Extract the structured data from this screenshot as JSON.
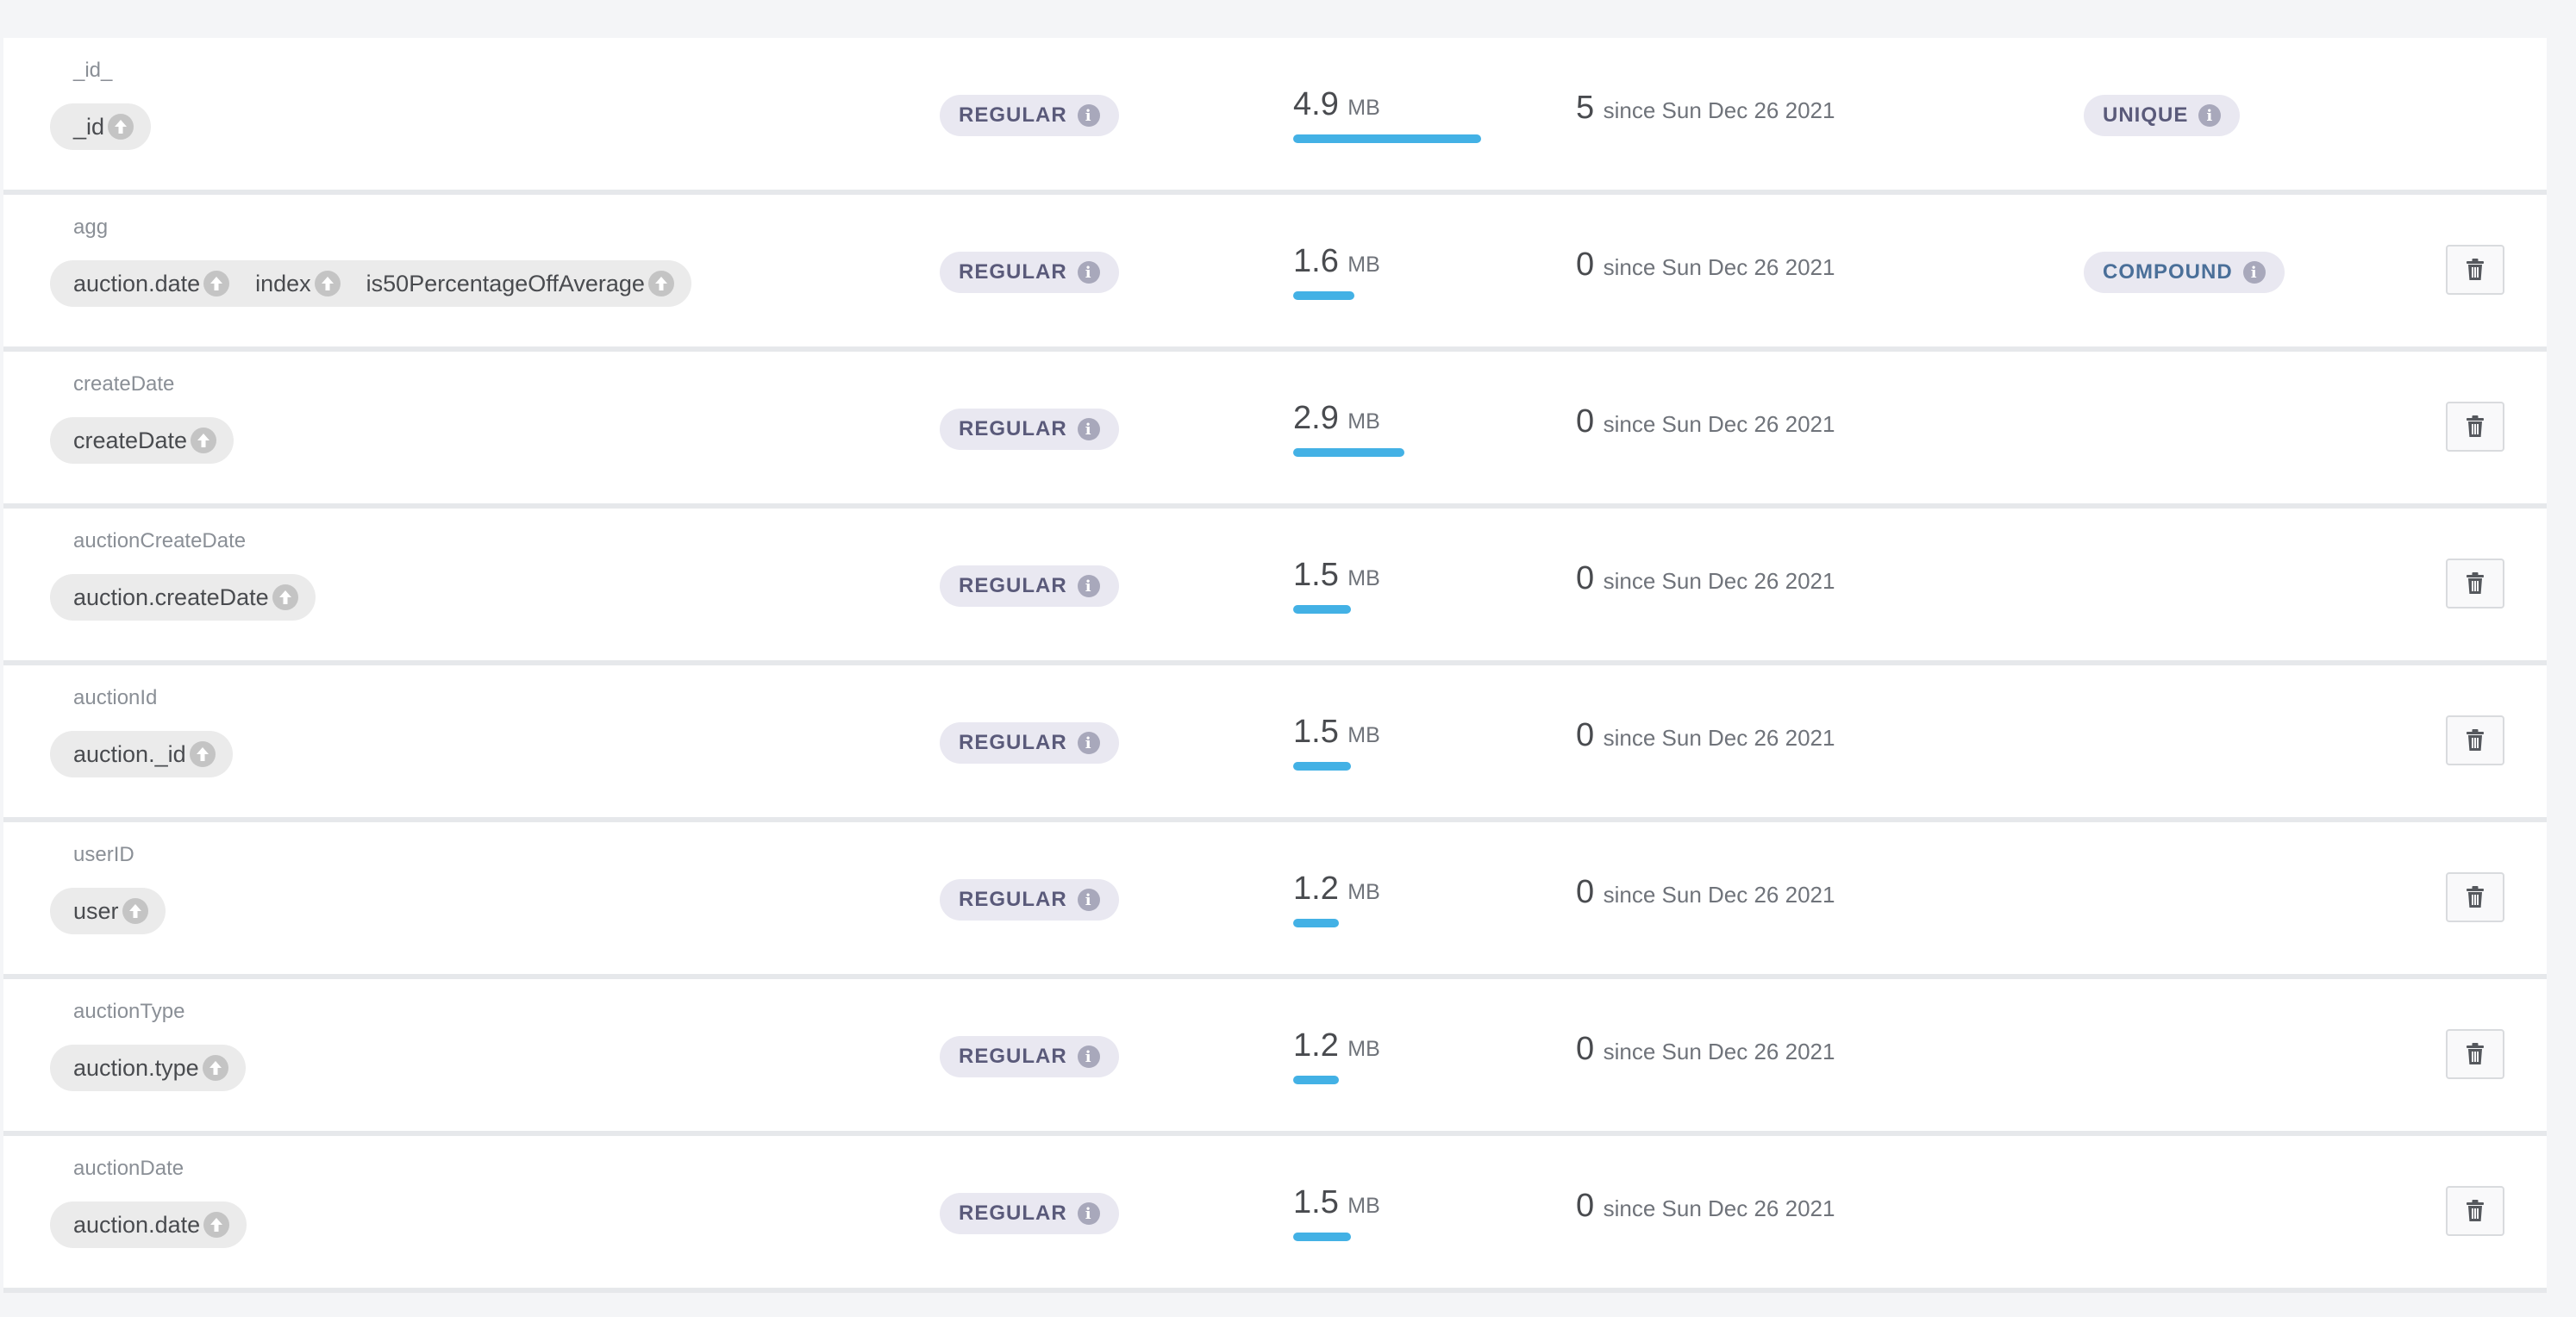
{
  "colors": {
    "page_bg": "#f4f5f7",
    "row_bg": "#ffffff",
    "size_bar": "#43b1e5",
    "badge_bg": "#e9e8f1",
    "compound_text": "#4a6f99"
  },
  "icons": {
    "direction": "arrow-up-circle-icon",
    "info": "info-icon",
    "delete": "trash-icon"
  },
  "max_size_mb": 4.9,
  "indexes": [
    {
      "name": "_id_",
      "fields": [
        {
          "name": "_id"
        }
      ],
      "type": "REGULAR",
      "size_value": "4.9",
      "size_unit": "MB",
      "size_mb": 4.9,
      "usage_count": "5",
      "usage_since": "since Sun Dec 26 2021",
      "property": "UNIQUE",
      "deletable": false
    },
    {
      "name": "agg",
      "fields": [
        {
          "name": "auction.date"
        },
        {
          "name": "index"
        },
        {
          "name": "is50PercentageOffAverage"
        }
      ],
      "type": "REGULAR",
      "size_value": "1.6",
      "size_unit": "MB",
      "size_mb": 1.6,
      "usage_count": "0",
      "usage_since": "since Sun Dec 26 2021",
      "property": "COMPOUND",
      "deletable": true
    },
    {
      "name": "createDate",
      "fields": [
        {
          "name": "createDate"
        }
      ],
      "type": "REGULAR",
      "size_value": "2.9",
      "size_unit": "MB",
      "size_mb": 2.9,
      "usage_count": "0",
      "usage_since": "since Sun Dec 26 2021",
      "property": "",
      "deletable": true
    },
    {
      "name": "auctionCreateDate",
      "fields": [
        {
          "name": "auction.createDate"
        }
      ],
      "type": "REGULAR",
      "size_value": "1.5",
      "size_unit": "MB",
      "size_mb": 1.5,
      "usage_count": "0",
      "usage_since": "since Sun Dec 26 2021",
      "property": "",
      "deletable": true
    },
    {
      "name": "auctionId",
      "fields": [
        {
          "name": "auction._id"
        }
      ],
      "type": "REGULAR",
      "size_value": "1.5",
      "size_unit": "MB",
      "size_mb": 1.5,
      "usage_count": "0",
      "usage_since": "since Sun Dec 26 2021",
      "property": "",
      "deletable": true
    },
    {
      "name": "userID",
      "fields": [
        {
          "name": "user"
        }
      ],
      "type": "REGULAR",
      "size_value": "1.2",
      "size_unit": "MB",
      "size_mb": 1.2,
      "usage_count": "0",
      "usage_since": "since Sun Dec 26 2021",
      "property": "",
      "deletable": true
    },
    {
      "name": "auctionType",
      "fields": [
        {
          "name": "auction.type"
        }
      ],
      "type": "REGULAR",
      "size_value": "1.2",
      "size_unit": "MB",
      "size_mb": 1.2,
      "usage_count": "0",
      "usage_since": "since Sun Dec 26 2021",
      "property": "",
      "deletable": true
    },
    {
      "name": "auctionDate",
      "fields": [
        {
          "name": "auction.date"
        }
      ],
      "type": "REGULAR",
      "size_value": "1.5",
      "size_unit": "MB",
      "size_mb": 1.5,
      "usage_count": "0",
      "usage_since": "since Sun Dec 26 2021",
      "property": "",
      "deletable": true
    }
  ]
}
